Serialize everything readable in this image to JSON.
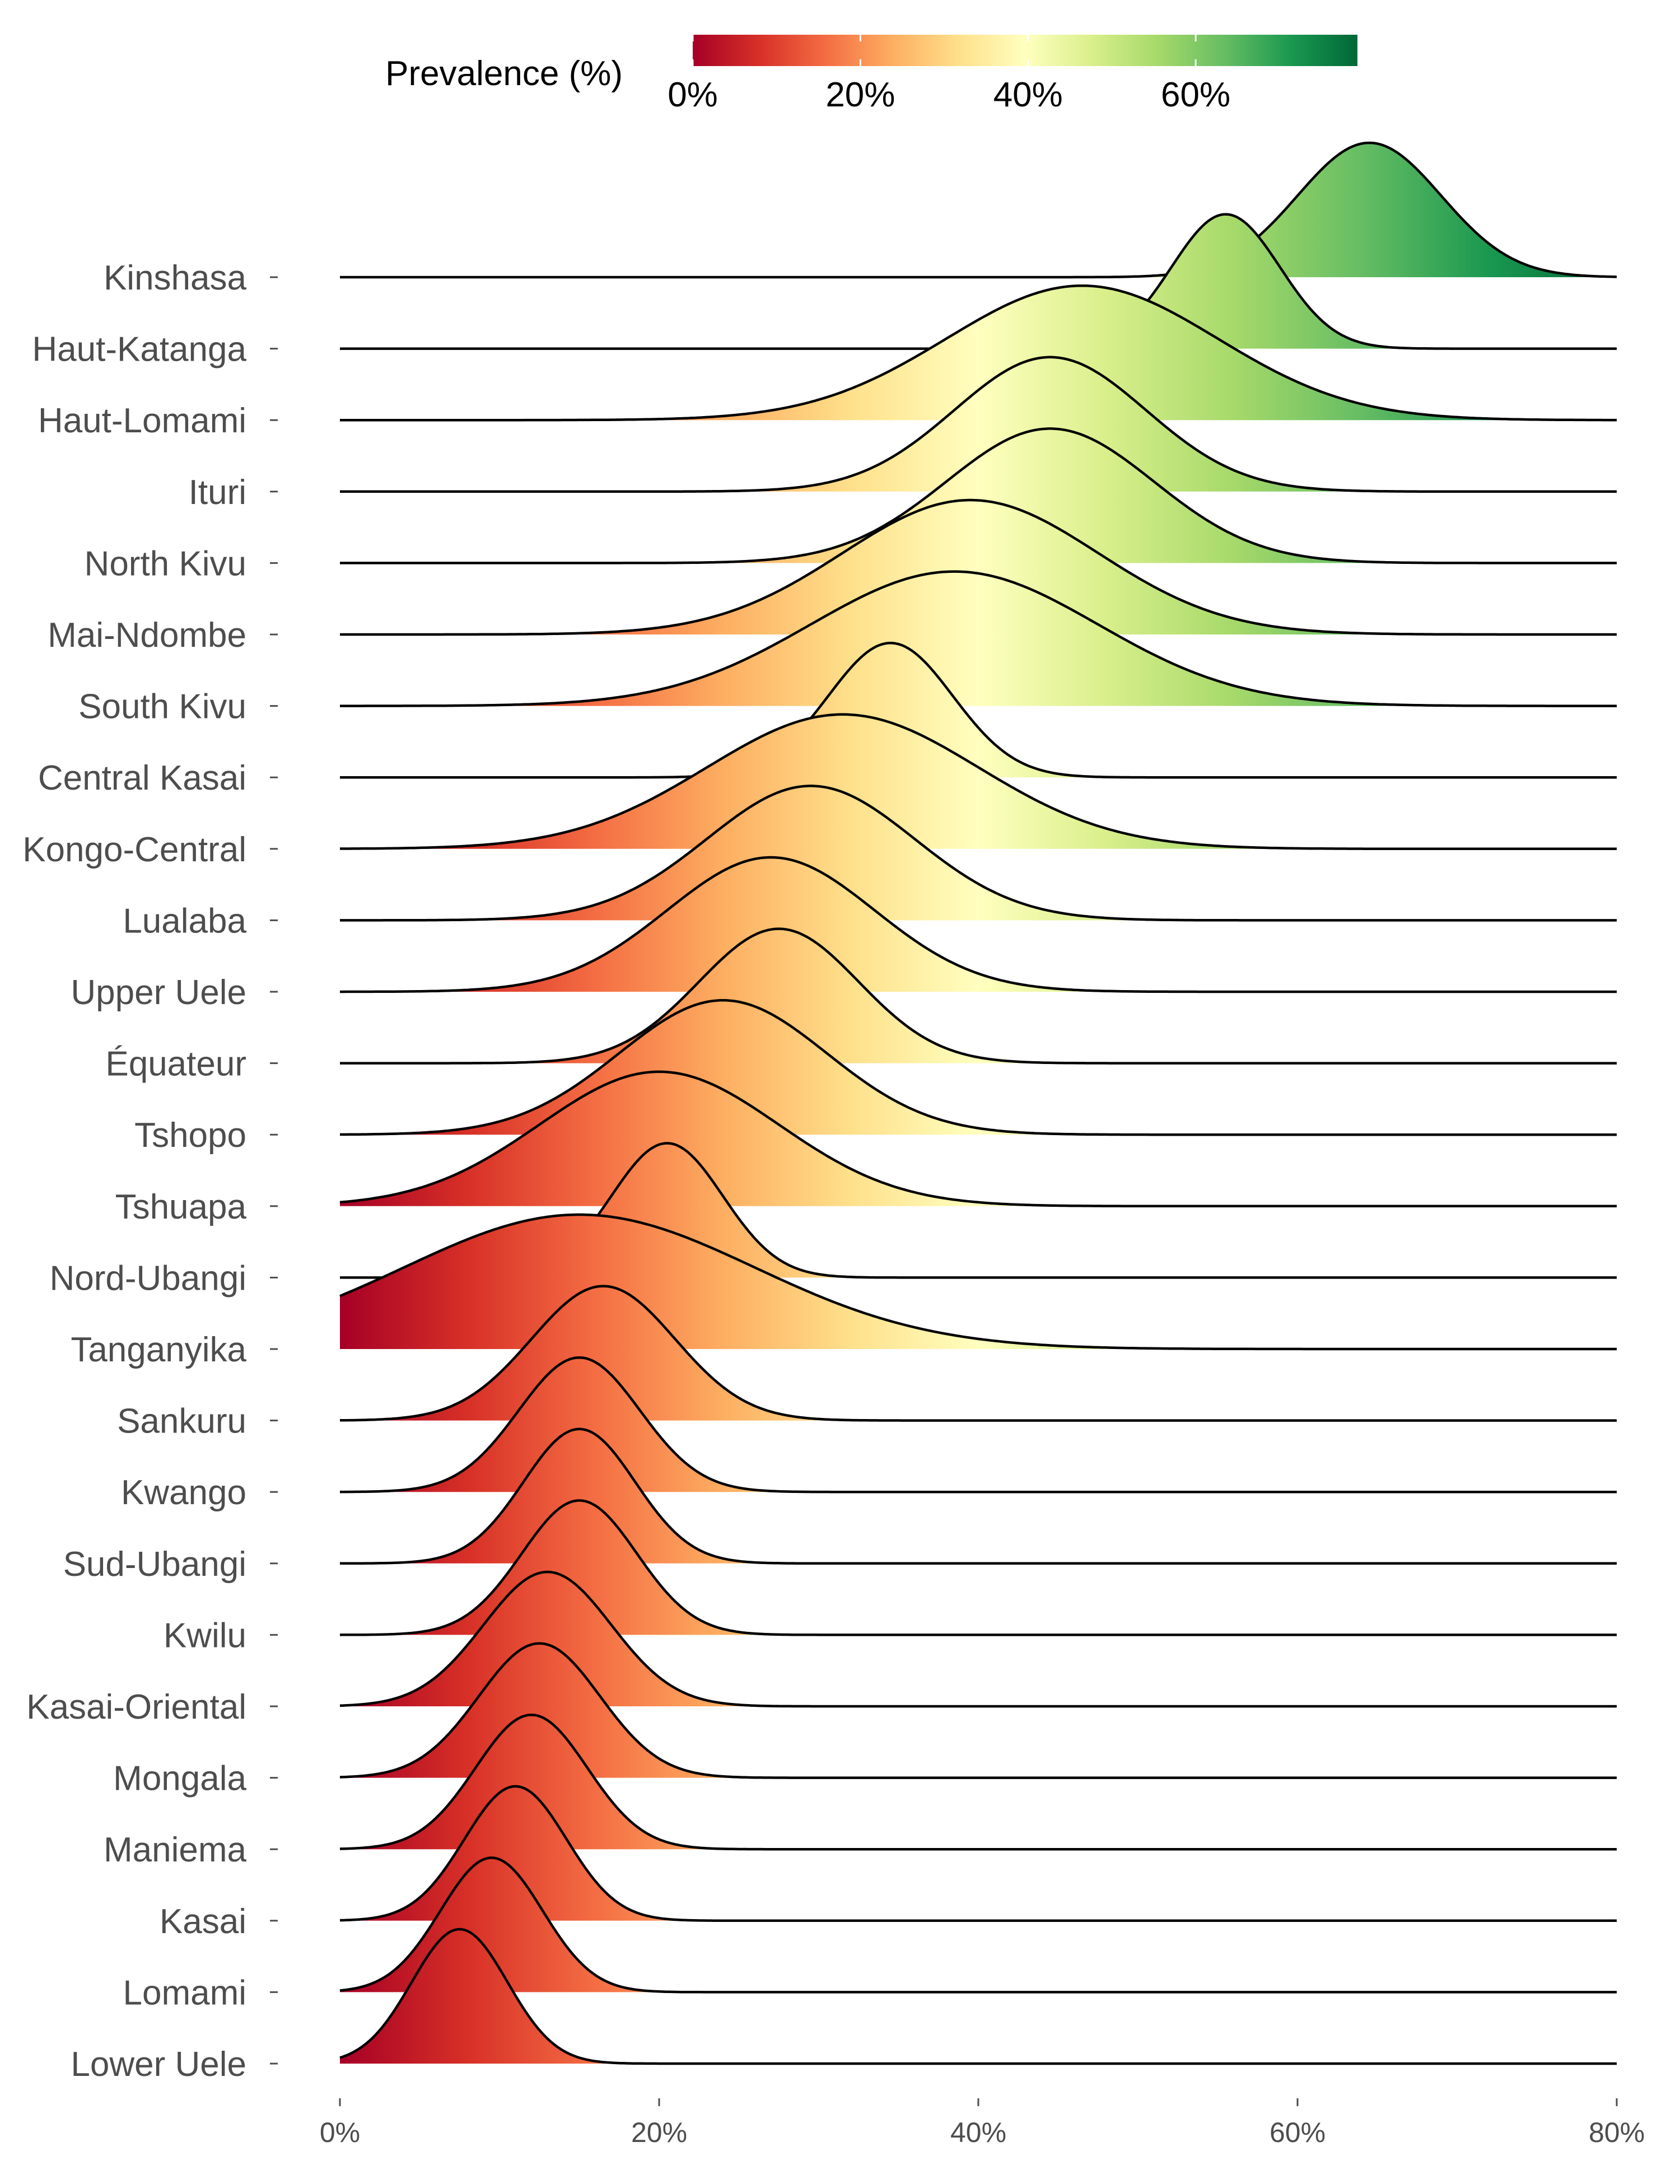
{
  "chart_data": {
    "type": "ridgeline",
    "xlim": [
      0,
      80
    ],
    "x_ticks": [
      0,
      20,
      40,
      60,
      80
    ],
    "x_tick_labels": [
      "0%",
      "20%",
      "40%",
      "60%",
      "80%"
    ],
    "grid": false,
    "legend": {
      "title": "Prevalence (%)",
      "placement": "top",
      "range": [
        0,
        80
      ],
      "ticks": [
        0,
        20,
        40,
        60
      ],
      "tick_labels": [
        "0%",
        "20%",
        "40%",
        "60%"
      ],
      "colors": [
        "#a50026",
        "#d73027",
        "#f46d43",
        "#fdae61",
        "#fee08b",
        "#ffffbf",
        "#d9ef8b",
        "#a6d96a",
        "#66bd63",
        "#1a9850",
        "#006837"
      ]
    },
    "series": [
      {
        "name": "Kinshasa",
        "peak": 64.5,
        "spread": 4.5
      },
      {
        "name": "Haut-Katanga",
        "peak": 55.5,
        "spread": 3.4
      },
      {
        "name": "Haut-Lomami",
        "peak": 46.5,
        "spread": 8.5
      },
      {
        "name": "Ituri",
        "peak": 44.5,
        "spread": 6.0
      },
      {
        "name": "North Kivu",
        "peak": 44.5,
        "spread": 6.5
      },
      {
        "name": "Mai-Ndombe",
        "peak": 39.5,
        "spread": 8.0
      },
      {
        "name": "South Kivu",
        "peak": 38.5,
        "spread": 9.0
      },
      {
        "name": "Central Kasai",
        "peak": 34.5,
        "spread": 3.9
      },
      {
        "name": "Kongo-Central",
        "peak": 31.5,
        "spread": 8.5
      },
      {
        "name": "Lualaba",
        "peak": 29.5,
        "spread": 6.5
      },
      {
        "name": "Upper Uele",
        "peak": 27.0,
        "spread": 6.5
      },
      {
        "name": "Équateur",
        "peak": 27.5,
        "spread": 5.0
      },
      {
        "name": "Tshopo",
        "peak": 24.0,
        "spread": 6.5
      },
      {
        "name": "Tshuapa",
        "peak": 20.0,
        "spread": 7.5
      },
      {
        "name": "Nord-Ubangi",
        "peak": 20.5,
        "spread": 3.5
      },
      {
        "name": "Tanganyika",
        "peak": 15.0,
        "spread": 11.0
      },
      {
        "name": "Sankuru",
        "peak": 16.5,
        "spread": 4.5
      },
      {
        "name": "Kwango",
        "peak": 15.0,
        "spread": 3.8
      },
      {
        "name": "Sud-Ubangi",
        "peak": 15.0,
        "spread": 3.5
      },
      {
        "name": "Kwilu",
        "peak": 15.0,
        "spread": 3.6
      },
      {
        "name": "Kasai-Oriental",
        "peak": 13.0,
        "spread": 4.0
      },
      {
        "name": "Mongala",
        "peak": 12.5,
        "spread": 3.8
      },
      {
        "name": "Maniema",
        "peak": 12.0,
        "spread": 3.5
      },
      {
        "name": "Kasai",
        "peak": 11.0,
        "spread": 3.2
      },
      {
        "name": "Lomami",
        "peak": 9.5,
        "spread": 3.2
      },
      {
        "name": "Lower Uele",
        "peak": 7.5,
        "spread": 3.0
      }
    ]
  }
}
